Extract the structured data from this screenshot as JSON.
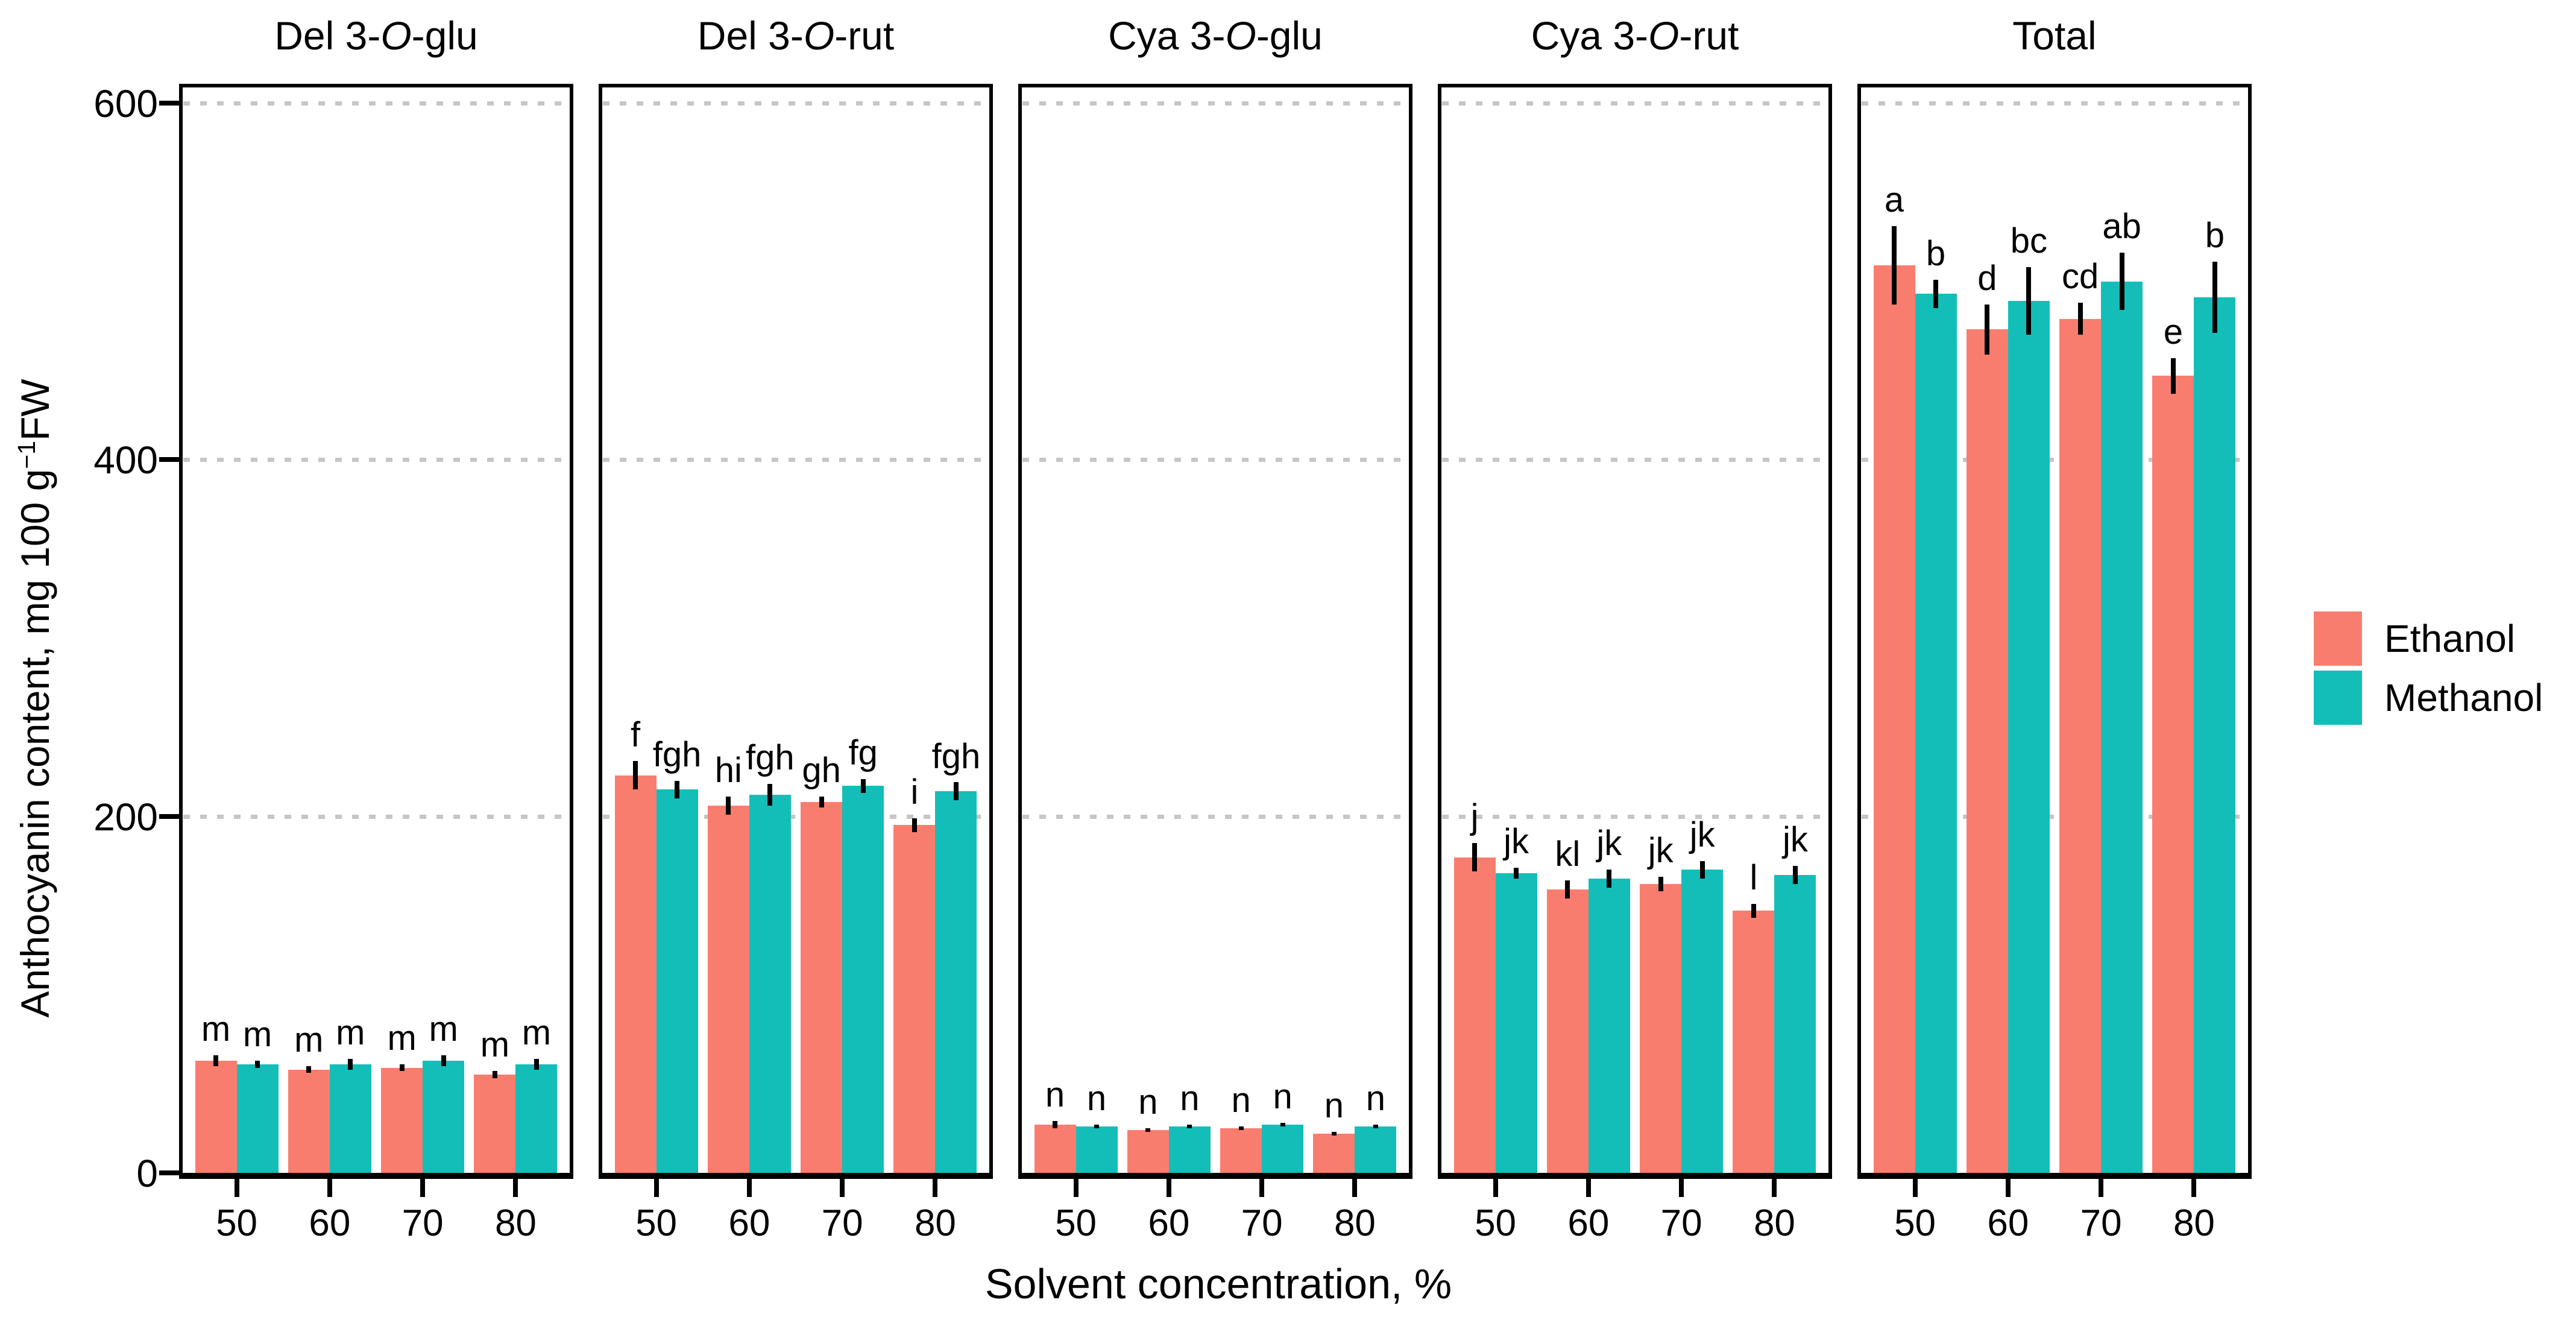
{
  "axes": {
    "y_title_main": "Anthocyanin content, mg 100 g",
    "y_title_sup": "−1",
    "y_title_suffix": "FW",
    "x_title": "Solvent concentration, %"
  },
  "legend": {
    "position": "right",
    "items": [
      {
        "label": "Ethanol",
        "color": "#F97D6E"
      },
      {
        "label": "Methanol",
        "color": "#13BEB9"
      }
    ]
  },
  "chart_data": {
    "type": "bar",
    "grouped": true,
    "title": "",
    "xlabel": "Solvent concentration, %",
    "ylabel": "Anthocyanin content, mg 100 g⁻¹FW",
    "ylim": [
      0,
      600
    ],
    "y_ticks": [
      0,
      200,
      400,
      600
    ],
    "gridlines": {
      "style": "dotted",
      "color": "#c6c6c6",
      "values": [
        200,
        400,
        600
      ]
    },
    "categories": [
      "50",
      "60",
      "70",
      "80"
    ],
    "series_colors": {
      "Ethanol": "#F97D6E",
      "Methanol": "#13BEB9"
    },
    "error_bars": true,
    "facets": [
      {
        "title": "Del 3-O-glu",
        "series": [
          {
            "name": "Ethanol",
            "values": [
              63,
              58,
              59,
              55
            ],
            "errors": [
              3,
              2,
              2,
              2
            ],
            "letters": [
              "m",
              "m",
              "m",
              "m"
            ]
          },
          {
            "name": "Methanol",
            "values": [
              61,
              61,
              63,
              61
            ],
            "errors": [
              2,
              3,
              3,
              3
            ],
            "letters": [
              "m",
              "m",
              "m",
              "m"
            ]
          }
        ]
      },
      {
        "title": "Del 3-O-rut",
        "series": [
          {
            "name": "Ethanol",
            "values": [
              223,
              206,
              208,
              195
            ],
            "errors": [
              8,
              5,
              3,
              4
            ],
            "letters": [
              "f",
              "hi",
              "gh",
              "i"
            ]
          },
          {
            "name": "Methanol",
            "values": [
              215,
              212,
              217,
              214
            ],
            "errors": [
              5,
              6,
              4,
              5
            ],
            "letters": [
              "fgh",
              "fgh",
              "fg",
              "fgh"
            ]
          }
        ]
      },
      {
        "title": "Cya 3-O-glu",
        "series": [
          {
            "name": "Ethanol",
            "values": [
              27,
              24,
              25,
              22
            ],
            "errors": [
              2,
              1,
              1,
              1
            ],
            "letters": [
              "n",
              "n",
              "n",
              "n"
            ]
          },
          {
            "name": "Methanol",
            "values": [
              26,
              26,
              27,
              26
            ],
            "errors": [
              1,
              1,
              1,
              1
            ],
            "letters": [
              "n",
              "n",
              "n",
              "n"
            ]
          }
        ]
      },
      {
        "title": "Cya 3-O-rut",
        "series": [
          {
            "name": "Ethanol",
            "values": [
              177,
              159,
              162,
              147
            ],
            "errors": [
              8,
              5,
              4,
              4
            ],
            "letters": [
              "j",
              "kl",
              "jk",
              "l"
            ]
          },
          {
            "name": "Methanol",
            "values": [
              168,
              165,
              170,
              167
            ],
            "errors": [
              3,
              5,
              5,
              5
            ],
            "letters": [
              "jk",
              "jk",
              "jk",
              "jk"
            ]
          }
        ]
      },
      {
        "title": "Total",
        "series": [
          {
            "name": "Ethanol",
            "values": [
              509,
              473,
              479,
              447
            ],
            "errors": [
              22,
              14,
              9,
              10
            ],
            "letters": [
              "a",
              "d",
              "cd",
              "e"
            ]
          },
          {
            "name": "Methanol",
            "values": [
              493,
              489,
              500,
              491
            ],
            "errors": [
              8,
              19,
              16,
              20
            ],
            "letters": [
              "b",
              "bc",
              "ab",
              "b"
            ]
          }
        ]
      }
    ]
  }
}
